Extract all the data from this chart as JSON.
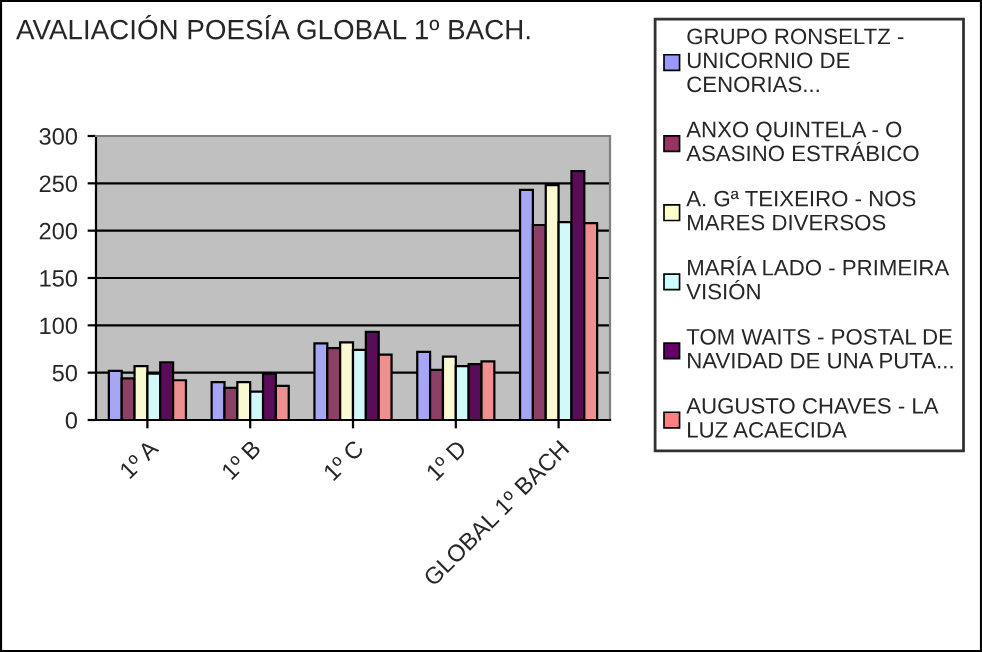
{
  "chart_data": {
    "type": "bar",
    "title": "AVALIACIÓN POESÍA GLOBAL 1º BACH.",
    "categories": [
      "1º A",
      "1º B",
      "1º C",
      "1º D",
      "GLOBAL 1º BACH"
    ],
    "series": [
      {
        "name": "GRUPO RONSELTZ - UNICORNIO DE CENORIAS...",
        "color": "#9999ff",
        "values": [
          52,
          40,
          81,
          72,
          243
        ]
      },
      {
        "name": "ANXO QUINTELA - O ASASINO ESTRÁBICO",
        "color": "#993366",
        "values": [
          44,
          34,
          76,
          53,
          206
        ]
      },
      {
        "name": "A. Gª TEIXEIRO - NOS MARES DIVERSOS",
        "color": "#ffffcc",
        "values": [
          57,
          40,
          82,
          67,
          248
        ]
      },
      {
        "name": "MARÍA LADO - PRIMEIRA VISIÓN",
        "color": "#ccffff",
        "values": [
          49,
          30,
          74,
          57,
          209
        ]
      },
      {
        "name": "TOM WAITS - POSTAL DE NAVIDAD DE UNA PUTA...",
        "color": "#660066",
        "values": [
          61,
          49,
          93,
          59,
          263
        ]
      },
      {
        "name": "AUGUSTO CHAVES - LA LUZ ACAECIDA",
        "color": "#ff8080",
        "values": [
          42,
          36,
          69,
          62,
          208
        ]
      }
    ],
    "ylim": [
      0,
      300
    ],
    "yticks": [
      0,
      50,
      100,
      150,
      200,
      250,
      300
    ],
    "grid": "y",
    "legend": "right"
  }
}
